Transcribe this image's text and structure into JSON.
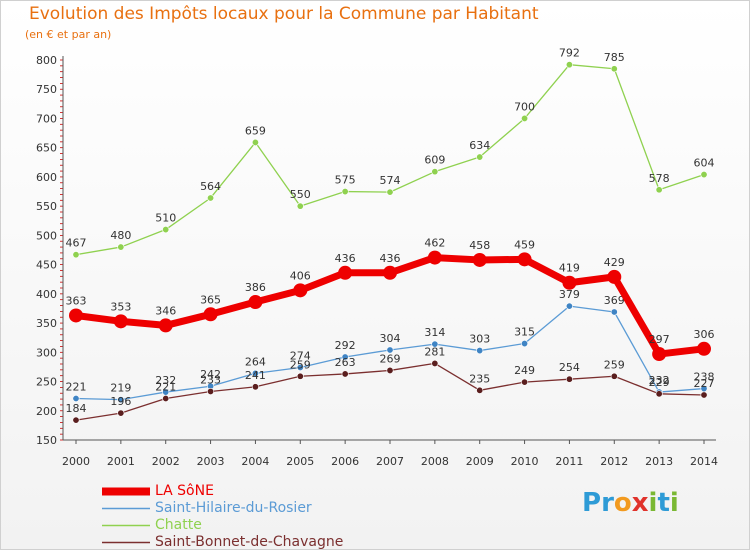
{
  "header": {
    "title": "Evolution des Impôts locaux pour la Commune par Habitant",
    "subtitle": "(en € et par an)"
  },
  "colors": {
    "title": "#e87010",
    "axis": "#555555",
    "grid_tick": "#cc0000"
  },
  "logo": {
    "text": "Proxiti",
    "letters": [
      {
        "ch": "P",
        "color": "#2e9bd6"
      },
      {
        "ch": "r",
        "color": "#2e9bd6"
      },
      {
        "ch": "o",
        "color": "#f29a1f"
      },
      {
        "ch": "x",
        "color": "#e0322b"
      },
      {
        "ch": "i",
        "color": "#7ab833"
      },
      {
        "ch": "t",
        "color": "#2e9bd6"
      },
      {
        "ch": "i",
        "color": "#7ab833"
      }
    ]
  },
  "chart_data": {
    "type": "line",
    "x": [
      "2000",
      "2001",
      "2002",
      "2003",
      "2004",
      "2005",
      "2006",
      "2007",
      "2008",
      "2009",
      "2010",
      "2011",
      "2012",
      "2013",
      "2014"
    ],
    "ylim": [
      150,
      800
    ],
    "yticks": [
      150,
      200,
      250,
      300,
      350,
      400,
      450,
      500,
      550,
      600,
      650,
      700,
      750,
      800
    ],
    "grid": false,
    "legend_position": "bottom-left",
    "series": [
      {
        "name": "Chatte",
        "color": "#8fd14f",
        "marker_fill": "#8fd14f",
        "width": 1.3,
        "marker": 3.2,
        "values": [
          467,
          480,
          510,
          564,
          659,
          550,
          575,
          574,
          609,
          634,
          700,
          792,
          785,
          578,
          604
        ]
      },
      {
        "name": "Saint-Hilaire-du-Rosier",
        "color": "#5b9bd5",
        "marker_fill": "#3f84c4",
        "width": 1.3,
        "marker": 3.2,
        "values": [
          221,
          219,
          232,
          242,
          264,
          274,
          292,
          304,
          314,
          303,
          315,
          379,
          369,
          232,
          238
        ]
      },
      {
        "name": "Saint-Bonnet-de-Chavagne",
        "color": "#7b2f2f",
        "marker_fill": "#5a1e1e",
        "width": 1.3,
        "marker": 3.2,
        "values": [
          184,
          196,
          221,
          233,
          241,
          259,
          263,
          269,
          281,
          235,
          249,
          254,
          259,
          229,
          227
        ]
      },
      {
        "name": "LA SôNE",
        "color": "#ee0000",
        "marker_fill": "#ee0000",
        "width": 7,
        "marker": 7,
        "values": [
          363,
          353,
          346,
          365,
          386,
          406,
          436,
          436,
          462,
          458,
          459,
          419,
          429,
          297,
          306
        ]
      }
    ]
  },
  "legend": {
    "items": [
      {
        "label": "LA SôNE",
        "color": "#ee0000",
        "thick": true
      },
      {
        "label": "Saint-Hilaire-du-Rosier",
        "color": "#5b9bd5",
        "thick": false
      },
      {
        "label": "Chatte",
        "color": "#8fd14f",
        "thick": false
      },
      {
        "label": "Saint-Bonnet-de-Chavagne",
        "color": "#7b2f2f",
        "thick": false
      }
    ]
  }
}
